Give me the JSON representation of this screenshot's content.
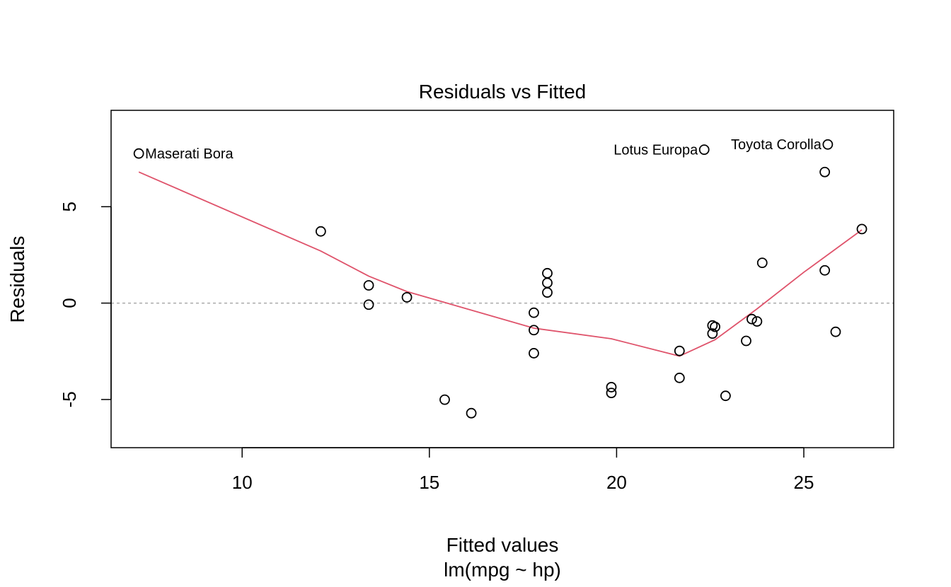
{
  "chart_data": {
    "type": "scatter",
    "title": "Residuals vs Fitted",
    "xlabel": "Fitted values",
    "xsublabel": "lm(mpg ~ hp)",
    "ylabel": "Residuals",
    "xlim": [
      6.5,
      27.4
    ],
    "ylim": [
      -7.5,
      10
    ],
    "x_ticks": [
      10,
      15,
      20,
      25
    ],
    "x_tick_labels": [
      "10",
      "15",
      "20",
      "25"
    ],
    "y_ticks": [
      -5,
      0,
      5
    ],
    "y_tick_labels": [
      "-5",
      "0",
      "5"
    ],
    "grid": false,
    "reference_line": {
      "y": 0,
      "style": "dotted",
      "color": "#aaaaaa"
    },
    "point_color": "#000000",
    "smooth_color": "#df536b",
    "points": [
      {
        "x": 7.24,
        "y": 7.76
      },
      {
        "x": 12.1,
        "y": 3.72
      },
      {
        "x": 13.38,
        "y": 0.92
      },
      {
        "x": 13.38,
        "y": -0.08
      },
      {
        "x": 14.4,
        "y": 0.3
      },
      {
        "x": 15.41,
        "y": -5.01
      },
      {
        "x": 16.12,
        "y": -5.71
      },
      {
        "x": 17.79,
        "y": -0.5
      },
      {
        "x": 17.79,
        "y": -1.4
      },
      {
        "x": 17.79,
        "y": -2.6
      },
      {
        "x": 18.15,
        "y": 1.55
      },
      {
        "x": 18.15,
        "y": 1.05
      },
      {
        "x": 18.15,
        "y": 0.55
      },
      {
        "x": 19.86,
        "y": -4.36
      },
      {
        "x": 19.86,
        "y": -4.66
      },
      {
        "x": 21.68,
        "y": -2.48
      },
      {
        "x": 21.68,
        "y": -3.88
      },
      {
        "x": 22.34,
        "y": 7.96
      },
      {
        "x": 22.56,
        "y": -1.16
      },
      {
        "x": 22.56,
        "y": -1.58
      },
      {
        "x": 22.63,
        "y": -1.23
      },
      {
        "x": 22.91,
        "y": -4.81
      },
      {
        "x": 23.46,
        "y": -1.96
      },
      {
        "x": 23.61,
        "y": -0.83
      },
      {
        "x": 23.75,
        "y": -0.95
      },
      {
        "x": 23.89,
        "y": 2.09
      },
      {
        "x": 25.56,
        "y": 6.8
      },
      {
        "x": 25.56,
        "y": 1.7
      },
      {
        "x": 25.64,
        "y": 8.23
      },
      {
        "x": 25.85,
        "y": -1.49
      },
      {
        "x": 26.55,
        "y": 3.84
      }
    ],
    "labeled_points": [
      {
        "x": 7.24,
        "y": 7.76,
        "label": "Maserati Bora",
        "side": "right"
      },
      {
        "x": 22.34,
        "y": 7.96,
        "label": "Lotus Europa",
        "side": "left"
      },
      {
        "x": 25.64,
        "y": 8.23,
        "label": "Toyota Corolla",
        "side": "left"
      }
    ],
    "smooth_line": {
      "x": [
        7.24,
        12.1,
        13.38,
        14.4,
        17.79,
        19.86,
        21.68,
        22.63,
        23.75,
        25.0,
        26.55
      ],
      "y": [
        6.8,
        2.7,
        1.4,
        0.6,
        -1.3,
        -1.85,
        -2.75,
        -1.9,
        -0.3,
        1.6,
        3.8
      ]
    }
  }
}
